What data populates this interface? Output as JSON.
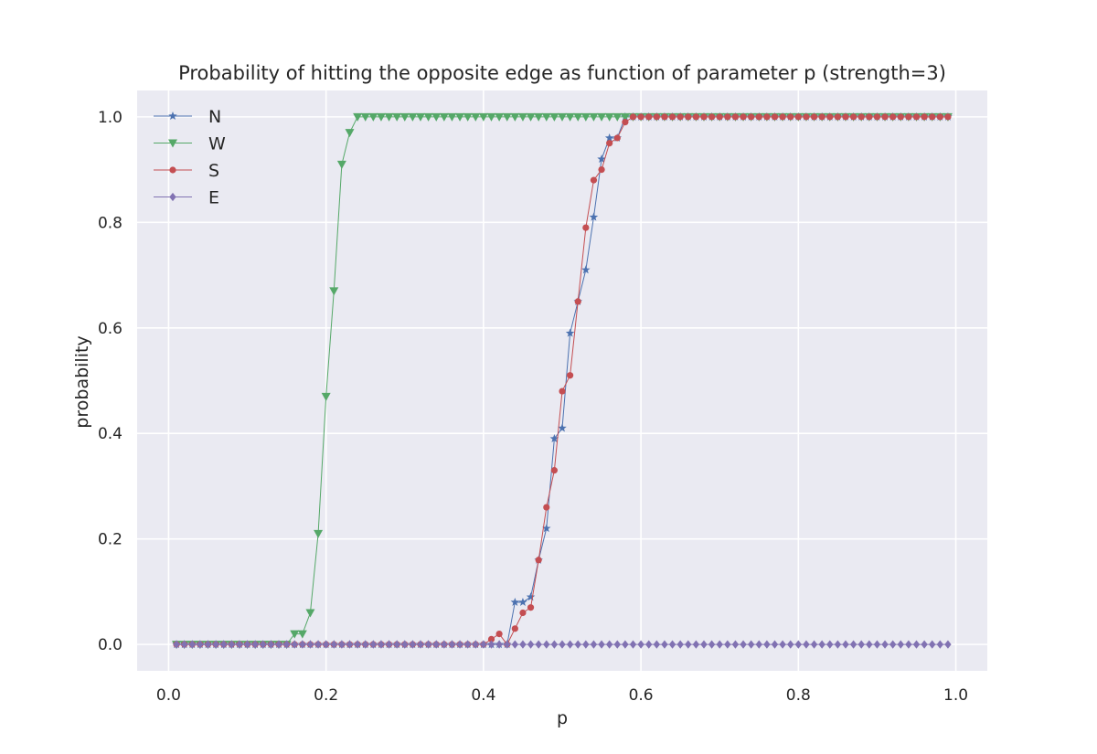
{
  "chart_data": {
    "type": "line",
    "title": "Probability of hitting the opposite edge as function of parameter p (strength=3)",
    "xlabel": "p",
    "ylabel": "probability",
    "xlim": [
      -0.04,
      1.04
    ],
    "ylim": [
      -0.05,
      1.05
    ],
    "xticks": [
      0.0,
      0.2,
      0.4,
      0.6,
      0.8,
      1.0
    ],
    "xtick_labels": [
      "0.0",
      "0.2",
      "0.4",
      "0.6",
      "0.8",
      "1.0"
    ],
    "yticks": [
      0.0,
      0.2,
      0.4,
      0.6,
      0.8,
      1.0
    ],
    "ytick_labels": [
      "0.0",
      "0.2",
      "0.4",
      "0.6",
      "0.8",
      "1.0"
    ],
    "grid": true,
    "legend_position": "top-left",
    "x": [
      0.01,
      0.02,
      0.03,
      0.04,
      0.05,
      0.06,
      0.07,
      0.08,
      0.09,
      0.1,
      0.11,
      0.12,
      0.13,
      0.14,
      0.15,
      0.16,
      0.17,
      0.18,
      0.19,
      0.2,
      0.21,
      0.22,
      0.23,
      0.24,
      0.25,
      0.26,
      0.27,
      0.28,
      0.29,
      0.3,
      0.31,
      0.32,
      0.33,
      0.34,
      0.35,
      0.36,
      0.37,
      0.38,
      0.39,
      0.4,
      0.41,
      0.42,
      0.43,
      0.44,
      0.45,
      0.46,
      0.47,
      0.48,
      0.49,
      0.5,
      0.51,
      0.52,
      0.53,
      0.54,
      0.55,
      0.56,
      0.57,
      0.58,
      0.59,
      0.6,
      0.61,
      0.62,
      0.63,
      0.64,
      0.65,
      0.66,
      0.67,
      0.68,
      0.69,
      0.7,
      0.71,
      0.72,
      0.73,
      0.74,
      0.75,
      0.76,
      0.77,
      0.78,
      0.79,
      0.8,
      0.81,
      0.82,
      0.83,
      0.84,
      0.85,
      0.86,
      0.87,
      0.88,
      0.89,
      0.9,
      0.91,
      0.92,
      0.93,
      0.94,
      0.95,
      0.96,
      0.97,
      0.98,
      0.99
    ],
    "series": [
      {
        "name": "N",
        "marker": "star",
        "color": "#4c72b0",
        "values": [
          0,
          0,
          0,
          0,
          0,
          0,
          0,
          0,
          0,
          0,
          0,
          0,
          0,
          0,
          0,
          0,
          0,
          0,
          0,
          0,
          0,
          0,
          0,
          0,
          0,
          0,
          0,
          0,
          0,
          0,
          0,
          0,
          0,
          0,
          0,
          0,
          0,
          0,
          0,
          0,
          0,
          0,
          0,
          0.08,
          0.08,
          0.09,
          0.16,
          0.22,
          0.39,
          0.41,
          0.59,
          0.65,
          0.71,
          0.81,
          0.92,
          0.96,
          0.96,
          1,
          1,
          1,
          1,
          1,
          1,
          1,
          1,
          1,
          1,
          1,
          1,
          1,
          1,
          1,
          1,
          1,
          1,
          1,
          1,
          1,
          1,
          1,
          1,
          1,
          1,
          1,
          1,
          1,
          1,
          1,
          1,
          1,
          1,
          1,
          1,
          1,
          1,
          1,
          1,
          1,
          1
        ]
      },
      {
        "name": "W",
        "marker": "triangle-down",
        "color": "#55a868",
        "values": [
          0,
          0,
          0,
          0,
          0,
          0,
          0,
          0,
          0,
          0,
          0,
          0,
          0,
          0,
          0,
          0.02,
          0.02,
          0.06,
          0.21,
          0.47,
          0.67,
          0.91,
          0.97,
          1,
          1,
          1,
          1,
          1,
          1,
          1,
          1,
          1,
          1,
          1,
          1,
          1,
          1,
          1,
          1,
          1,
          1,
          1,
          1,
          1,
          1,
          1,
          1,
          1,
          1,
          1,
          1,
          1,
          1,
          1,
          1,
          1,
          1,
          1,
          1,
          1,
          1,
          1,
          1,
          1,
          1,
          1,
          1,
          1,
          1,
          1,
          1,
          1,
          1,
          1,
          1,
          1,
          1,
          1,
          1,
          1,
          1,
          1,
          1,
          1,
          1,
          1,
          1,
          1,
          1,
          1,
          1,
          1,
          1,
          1,
          1,
          1,
          1,
          1,
          1
        ]
      },
      {
        "name": "S",
        "marker": "circle",
        "color": "#c44e52",
        "values": [
          0,
          0,
          0,
          0,
          0,
          0,
          0,
          0,
          0,
          0,
          0,
          0,
          0,
          0,
          0,
          0,
          0,
          0,
          0,
          0,
          0,
          0,
          0,
          0,
          0,
          0,
          0,
          0,
          0,
          0,
          0,
          0,
          0,
          0,
          0,
          0,
          0,
          0,
          0,
          0,
          0.01,
          0.02,
          0,
          0.03,
          0.06,
          0.07,
          0.16,
          0.26,
          0.33,
          0.48,
          0.51,
          0.65,
          0.79,
          0.88,
          0.9,
          0.95,
          0.96,
          0.99,
          1,
          1,
          1,
          1,
          1,
          1,
          1,
          1,
          1,
          1,
          1,
          1,
          1,
          1,
          1,
          1,
          1,
          1,
          1,
          1,
          1,
          1,
          1,
          1,
          1,
          1,
          1,
          1,
          1,
          1,
          1,
          1,
          1,
          1,
          1,
          1,
          1,
          1,
          1,
          1,
          1
        ]
      },
      {
        "name": "E",
        "marker": "diamond",
        "color": "#8172b2",
        "values": [
          0,
          0,
          0,
          0,
          0,
          0,
          0,
          0,
          0,
          0,
          0,
          0,
          0,
          0,
          0,
          0,
          0,
          0,
          0,
          0,
          0,
          0,
          0,
          0,
          0,
          0,
          0,
          0,
          0,
          0,
          0,
          0,
          0,
          0,
          0,
          0,
          0,
          0,
          0,
          0,
          0,
          0,
          0,
          0,
          0,
          0,
          0,
          0,
          0,
          0,
          0,
          0,
          0,
          0,
          0,
          0,
          0,
          0,
          0,
          0,
          0,
          0,
          0,
          0,
          0,
          0,
          0,
          0,
          0,
          0,
          0,
          0,
          0,
          0,
          0,
          0,
          0,
          0,
          0,
          0,
          0,
          0,
          0,
          0,
          0,
          0,
          0,
          0,
          0,
          0,
          0,
          0,
          0,
          0,
          0,
          0,
          0,
          0,
          0
        ]
      }
    ],
    "colors": {
      "plot_background": "#eaeaf2",
      "grid": "#ffffff",
      "text": "#262626"
    }
  }
}
